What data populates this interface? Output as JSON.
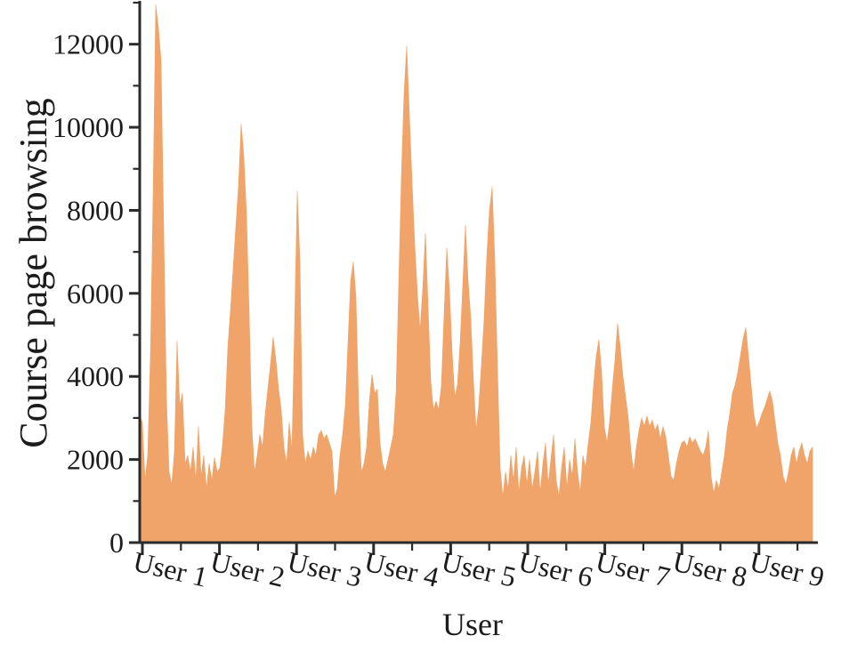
{
  "figure": {
    "background": "#ffffff"
  },
  "chart_data": {
    "type": "area",
    "title": "",
    "xlabel": "User",
    "ylabel": "Course page browsing",
    "x_categories": [
      "User 1",
      "User 2",
      "User 3",
      "User 4",
      "User 5",
      "User 6",
      "User 7",
      "User 8",
      "User 9"
    ],
    "y_tick_labels": [
      "0",
      "2000",
      "4000",
      "6000",
      "8000",
      "10000",
      "12000"
    ],
    "y_major_step": 2000,
    "y_minor_step": 1000,
    "ylim": [
      0,
      13000
    ],
    "grid": "off",
    "legend": "none",
    "colors": {
      "bar": "#f0a469",
      "axis": "#2b2b2b",
      "text": "#1c1c1c",
      "background": "#ffffff"
    },
    "series": [
      {
        "user": "User 1",
        "values": [
          3050,
          2900,
          1500,
          2100,
          4500,
          8300,
          12950,
          12400,
          11600,
          7500,
          3500,
          1700,
          1400,
          2200,
          4850,
          3300,
          3600,
          1900,
          2100,
          1700,
          2300,
          1500,
          2800,
          1600,
          2100,
          1300,
          1900,
          1500,
          2050,
          1700
        ]
      },
      {
        "user": "User 2",
        "values": [
          1800,
          2350,
          3200,
          4700,
          5600,
          6600,
          7600,
          8600,
          10080,
          9300,
          7900,
          5500,
          2800,
          1700,
          2100,
          2600,
          2300,
          3100,
          3700,
          4300,
          4950,
          4400,
          3700,
          3200,
          2300,
          1900,
          2900,
          2200,
          5200
        ]
      },
      {
        "user": "User 3",
        "values": [
          8460,
          6800,
          2600,
          1900,
          2200,
          2000,
          2300,
          2100,
          2600,
          2700,
          2500,
          2600,
          2400,
          2200,
          1100,
          1300,
          2100,
          2600,
          3300,
          4800,
          6300,
          6760,
          5900,
          3300,
          1700,
          1900,
          2300,
          3400,
          4050
        ]
      },
      {
        "user": "User 4",
        "values": [
          3600,
          3700,
          2400,
          1900,
          1700,
          2000,
          2300,
          2600,
          3600,
          6200,
          8800,
          10800,
          11960,
          10300,
          8700,
          7200,
          6000,
          5100,
          6100,
          7450,
          5700,
          3900,
          3200,
          3400,
          3200,
          3800,
          5500,
          7100,
          6100
        ]
      },
      {
        "user": "User 5",
        "values": [
          4600,
          3500,
          3800,
          4800,
          6200,
          7650,
          6300,
          5400,
          3900,
          2700,
          3300,
          4300,
          5400,
          6900,
          8000,
          8560,
          6800,
          4200,
          1800,
          1100,
          1700,
          1300,
          2100,
          1500,
          2300,
          1200,
          1800,
          2100,
          1400
        ]
      },
      {
        "user": "User 6",
        "values": [
          2000,
          1300,
          1700,
          2200,
          1200,
          1900,
          2400,
          1400,
          2000,
          2600,
          1500,
          1100,
          1800,
          2300,
          1300,
          2000,
          1600,
          2500,
          1700,
          1200,
          2100,
          1800,
          2400,
          2900,
          3800,
          4500,
          4890,
          4100,
          2800
        ]
      },
      {
        "user": "User 7",
        "values": [
          2400,
          2900,
          3700,
          4400,
          5280,
          4700,
          4000,
          3500,
          3000,
          2200,
          1700,
          2300,
          2700,
          3000,
          2800,
          3050,
          2800,
          2950,
          2700,
          2850,
          2500,
          2800,
          2550,
          2100,
          1600,
          1500,
          1900,
          2200,
          2400
        ]
      },
      {
        "user": "User 8",
        "values": [
          2450,
          2300,
          2550,
          2400,
          2500,
          2350,
          2200,
          2100,
          2300,
          2700,
          1600,
          1200,
          1500,
          1300,
          1700,
          2100,
          2700,
          3100,
          3600,
          3800,
          4100,
          4500,
          4900,
          5180,
          4500,
          3800,
          3100,
          2750,
          2900
        ]
      },
      {
        "user": "User 9",
        "values": [
          3100,
          3250,
          3450,
          3650,
          3400,
          2900,
          2400,
          2100,
          1600,
          1400,
          1700,
          2100,
          2300,
          1900,
          2200,
          2400,
          2100,
          1900,
          2200,
          2300
        ]
      }
    ]
  }
}
